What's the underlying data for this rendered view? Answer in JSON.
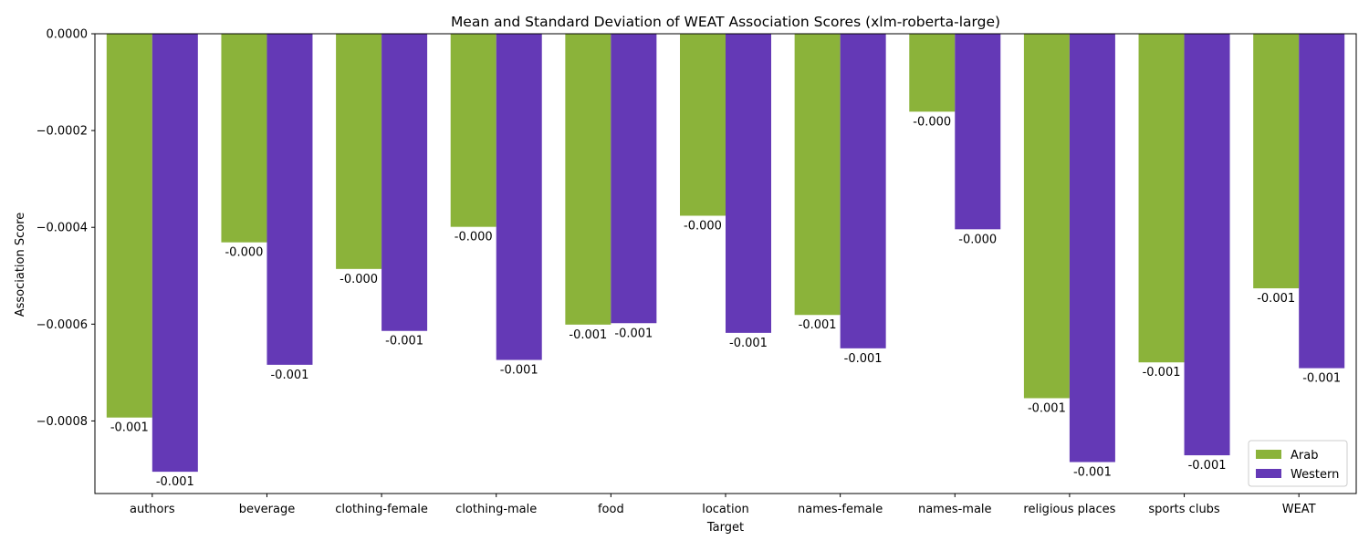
{
  "chart_data": {
    "type": "bar",
    "title": "Mean and Standard Deviation of WEAT Association Scores (xlm-roberta-large)",
    "xlabel": "Target",
    "ylabel": "Association Score",
    "categories": [
      "authors",
      "beverage",
      "clothing-female",
      "clothing-male",
      "food",
      "location",
      "names-female",
      "names-male",
      "religious places",
      "sports clubs",
      "WEAT"
    ],
    "series": [
      {
        "name": "Arab",
        "color": "#8bb33a",
        "values": [
          -0.000793,
          -0.000431,
          -0.000486,
          -0.000399,
          -0.000601,
          -0.000376,
          -0.000581,
          -0.000161,
          -0.000753,
          -0.000679,
          -0.000526
        ],
        "labels": [
          "-0.001",
          "-0.000",
          "-0.000",
          "-0.000",
          "-0.001",
          "-0.000",
          "-0.001",
          "-0.000",
          "-0.001",
          "-0.001",
          "-0.001"
        ]
      },
      {
        "name": "Western",
        "color": "#6439b6",
        "values": [
          -0.000905,
          -0.000684,
          -0.000614,
          -0.000674,
          -0.000598,
          -0.000618,
          -0.00065,
          -0.000404,
          -0.000885,
          -0.000871,
          -0.000691
        ],
        "labels": [
          "-0.001",
          "-0.001",
          "-0.001",
          "-0.001",
          "-0.001",
          "-0.001",
          "-0.001",
          "-0.000",
          "-0.001",
          "-0.001",
          "-0.001"
        ]
      }
    ],
    "yticks": [
      0,
      -0.0002,
      -0.0004,
      -0.0006,
      -0.0008
    ],
    "ytick_labels": [
      "0.0000",
      "−0.0002",
      "−0.0004",
      "−0.0006",
      "−0.0008"
    ],
    "ylim": [
      -0.00095,
      0
    ],
    "grid": false,
    "legend_position": "lower right"
  }
}
